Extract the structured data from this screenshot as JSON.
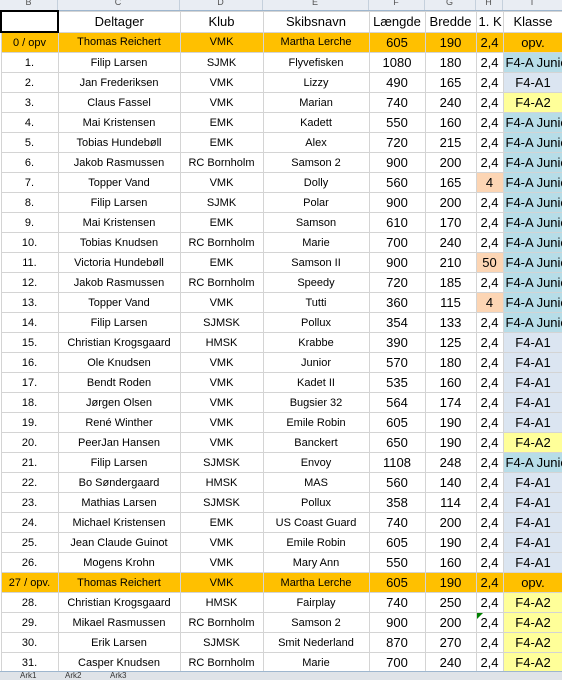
{
  "column_letters": [
    "B",
    "C",
    "D",
    "E",
    "F",
    "G",
    "H",
    "I"
  ],
  "headers": [
    "",
    "Deltager",
    "Klub",
    "Skibsnavn",
    "Længde",
    "Bredde",
    "1. K",
    "Klasse"
  ],
  "rows": [
    {
      "nr": "0 / opv",
      "navn": "Thomas Reichert",
      "klub": "VMK",
      "skib": "Martha Lerche",
      "l": "605",
      "b": "190",
      "k": "2,4",
      "klasse": "opv.",
      "row": "hl",
      "kcls": "",
      "kl": "opv"
    },
    {
      "nr": "1.",
      "navn": "Filip Larsen",
      "klub": "SJMK",
      "skib": "Flyvefisken",
      "l": "1080",
      "b": "180",
      "k": "2,4",
      "klasse": "F4-A Junior",
      "row": "",
      "kcls": "",
      "kl": "junior"
    },
    {
      "nr": "2.",
      "navn": "Jan Frederiksen",
      "klub": "VMK",
      "skib": "Lizzy",
      "l": "490",
      "b": "165",
      "k": "2,4",
      "klasse": "F4-A1",
      "row": "",
      "kcls": "",
      "kl": "a1"
    },
    {
      "nr": "3.",
      "navn": "Claus Fassel",
      "klub": "VMK",
      "skib": "Marian",
      "l": "740",
      "b": "240",
      "k": "2,4",
      "klasse": "F4-A2",
      "row": "",
      "kcls": "",
      "kl": "a2"
    },
    {
      "nr": "4.",
      "navn": "Mai Kristensen",
      "klub": "EMK",
      "skib": "Kadett",
      "l": "550",
      "b": "160",
      "k": "2,4",
      "klasse": "F4-A Junior",
      "row": "",
      "kcls": "",
      "kl": "junior"
    },
    {
      "nr": "5.",
      "navn": "Tobias Hundebøll",
      "klub": "EMK",
      "skib": "Alex",
      "l": "720",
      "b": "215",
      "k": "2,4",
      "klasse": "F4-A Junior",
      "row": "",
      "kcls": "",
      "kl": "junior"
    },
    {
      "nr": "6.",
      "navn": "Jakob Rasmussen",
      "klub": "RC Bornholm",
      "skib": "Samson 2",
      "l": "900",
      "b": "200",
      "k": "2,4",
      "klasse": "F4-A Junior",
      "row": "",
      "kcls": "",
      "kl": "junior"
    },
    {
      "nr": "7.",
      "navn": "Topper Vand",
      "klub": "VMK",
      "skib": "Dolly",
      "l": "560",
      "b": "165",
      "k": "4",
      "klasse": "F4-A Junior",
      "row": "",
      "kcls": "warn",
      "kl": "junior"
    },
    {
      "nr": "8.",
      "navn": "Filip Larsen",
      "klub": "SJMK",
      "skib": "Polar",
      "l": "900",
      "b": "200",
      "k": "2,4",
      "klasse": "F4-A Junior",
      "row": "",
      "kcls": "",
      "kl": "junior"
    },
    {
      "nr": "9.",
      "navn": "Mai Kristensen",
      "klub": "EMK",
      "skib": "Samson",
      "l": "610",
      "b": "170",
      "k": "2,4",
      "klasse": "F4-A Junior",
      "row": "",
      "kcls": "",
      "kl": "junior"
    },
    {
      "nr": "10.",
      "navn": "Tobias Knudsen",
      "klub": "RC Bornholm",
      "skib": "Marie",
      "l": "700",
      "b": "240",
      "k": "2,4",
      "klasse": "F4-A Junior",
      "row": "",
      "kcls": "",
      "kl": "junior"
    },
    {
      "nr": "11.",
      "navn": "Victoria Hundebøll",
      "klub": "EMK",
      "skib": "Samson II",
      "l": "900",
      "b": "210",
      "k": "50",
      "klasse": "F4-A Junior",
      "row": "",
      "kcls": "warn",
      "kl": "junior"
    },
    {
      "nr": "12.",
      "navn": "Jakob Rasmussen",
      "klub": "RC Bornholm",
      "skib": "Speedy",
      "l": "720",
      "b": "185",
      "k": "2,4",
      "klasse": "F4-A Junior",
      "row": "",
      "kcls": "",
      "kl": "junior"
    },
    {
      "nr": "13.",
      "navn": "Topper Vand",
      "klub": "VMK",
      "skib": "Tutti",
      "l": "360",
      "b": "115",
      "k": "4",
      "klasse": "F4-A Junior",
      "row": "",
      "kcls": "warn",
      "kl": "junior"
    },
    {
      "nr": "14.",
      "navn": "Filip Larsen",
      "klub": "SJMSK",
      "skib": "Pollux",
      "l": "354",
      "b": "133",
      "k": "2,4",
      "klasse": "F4-A Junior",
      "row": "",
      "kcls": "",
      "kl": "junior"
    },
    {
      "nr": "15.",
      "navn": "Christian Krogsgaard",
      "klub": "HMSK",
      "skib": "Krabbe",
      "l": "390",
      "b": "125",
      "k": "2,4",
      "klasse": "F4-A1",
      "row": "",
      "kcls": "",
      "kl": "a1"
    },
    {
      "nr": "16.",
      "navn": "Ole Knudsen",
      "klub": "VMK",
      "skib": "Junior",
      "l": "570",
      "b": "180",
      "k": "2,4",
      "klasse": "F4-A1",
      "row": "",
      "kcls": "",
      "kl": "a1"
    },
    {
      "nr": "17.",
      "navn": "Bendt Roden",
      "klub": "VMK",
      "skib": "Kadet II",
      "l": "535",
      "b": "160",
      "k": "2,4",
      "klasse": "F4-A1",
      "row": "",
      "kcls": "",
      "kl": "a1"
    },
    {
      "nr": "18.",
      "navn": "Jørgen Olsen",
      "klub": "VMK",
      "skib": "Bugsier 32",
      "l": "564",
      "b": "174",
      "k": "2,4",
      "klasse": "F4-A1",
      "row": "",
      "kcls": "",
      "kl": "a1"
    },
    {
      "nr": "19.",
      "navn": "René Winther",
      "klub": "VMK",
      "skib": "Emile Robin",
      "l": "605",
      "b": "190",
      "k": "2,4",
      "klasse": "F4-A1",
      "row": "",
      "kcls": "",
      "kl": "a1"
    },
    {
      "nr": "20.",
      "navn": "PeerJan Hansen",
      "klub": "VMK",
      "skib": "Banckert",
      "l": "650",
      "b": "190",
      "k": "2,4",
      "klasse": "F4-A2",
      "row": "",
      "kcls": "",
      "kl": "a2"
    },
    {
      "nr": "21.",
      "navn": "Filip Larsen",
      "klub": "SJMSK",
      "skib": "Envoy",
      "l": "1108",
      "b": "248",
      "k": "2,4",
      "klasse": "F4-A Junior",
      "row": "",
      "kcls": "",
      "kl": "junior"
    },
    {
      "nr": "22.",
      "navn": "Bo Søndergaard",
      "klub": "HMSK",
      "skib": "MAS",
      "l": "560",
      "b": "140",
      "k": "2,4",
      "klasse": "F4-A1",
      "row": "",
      "kcls": "",
      "kl": "a1"
    },
    {
      "nr": "23.",
      "navn": "Mathias Larsen",
      "klub": "SJMSK",
      "skib": "Pollux",
      "l": "358",
      "b": "114",
      "k": "2,4",
      "klasse": "F4-A1",
      "row": "",
      "kcls": "",
      "kl": "a1"
    },
    {
      "nr": "24.",
      "navn": "Michael Kristensen",
      "klub": "EMK",
      "skib": "US Coast Guard",
      "l": "740",
      "b": "200",
      "k": "2,4",
      "klasse": "F4-A1",
      "row": "",
      "kcls": "",
      "kl": "a1"
    },
    {
      "nr": "25.",
      "navn": "Jean Claude Guinot",
      "klub": "VMK",
      "skib": "Emile Robin",
      "l": "605",
      "b": "190",
      "k": "2,4",
      "klasse": "F4-A1",
      "row": "",
      "kcls": "",
      "kl": "a1"
    },
    {
      "nr": "26.",
      "navn": "Mogens Krohn",
      "klub": "VMK",
      "skib": "Mary Ann",
      "l": "550",
      "b": "160",
      "k": "2,4",
      "klasse": "F4-A1",
      "row": "",
      "kcls": "",
      "kl": "a1"
    },
    {
      "nr": "27 / opv.",
      "navn": "Thomas Reichert",
      "klub": "VMK",
      "skib": "Martha Lerche",
      "l": "605",
      "b": "190",
      "k": "2,4",
      "klasse": "opv.",
      "row": "hl",
      "kcls": "",
      "kl": "opv"
    },
    {
      "nr": "28.",
      "navn": "Christian Krogsgaard",
      "klub": "HMSK",
      "skib": "Fairplay",
      "l": "740",
      "b": "250",
      "k": "2,4",
      "klasse": "F4-A2",
      "row": "",
      "kcls": "",
      "kl": "a2"
    },
    {
      "nr": "29.",
      "navn": "Mikael Rasmussen",
      "klub": "RC Bornholm",
      "skib": "Samson 2",
      "l": "900",
      "b": "200",
      "k": "2,4",
      "klasse": "F4-A2",
      "row": "",
      "kcls": "tri",
      "kl": "a2"
    },
    {
      "nr": "30.",
      "navn": "Erik Larsen",
      "klub": "SJMSK",
      "skib": "Smit Nederland",
      "l": "870",
      "b": "270",
      "k": "2,4",
      "klasse": "F4-A2",
      "row": "",
      "kcls": "",
      "kl": "a2"
    },
    {
      "nr": "31.",
      "navn": "Casper Knudsen",
      "klub": "RC Bornholm",
      "skib": "Marie",
      "l": "700",
      "b": "240",
      "k": "2,4",
      "klasse": "F4-A2",
      "row": "",
      "kcls": "",
      "kl": "a2"
    }
  ],
  "sheet_tabs": [
    "Ark1",
    "Ark2",
    "Ark3"
  ]
}
